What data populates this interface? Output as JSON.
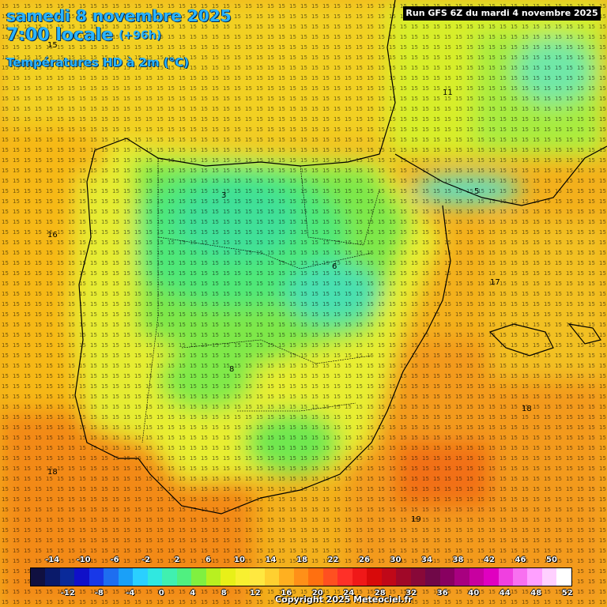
{
  "header": {
    "date_title": "samedi 8 novembre 2025",
    "time_title": "7:00 locale",
    "lead_time": "(+96h)",
    "variable_title": "Températures HD à 2m (°C)",
    "run_info": "Run GFS 6Z du mardi 4 novembre 2025"
  },
  "footer": {
    "copyright": "Copyright 2025 Meteociel.fr"
  },
  "map": {
    "region": "Iberian Peninsula",
    "temperature_regions": [
      {
        "name": "atlantic-north",
        "value": 15
      },
      {
        "name": "france-southwest",
        "value": 11
      },
      {
        "name": "pyrenees",
        "value": 5
      },
      {
        "name": "meseta-north",
        "value": 3
      },
      {
        "name": "meseta-south",
        "value": 8
      },
      {
        "name": "iberian-system",
        "value": 6
      },
      {
        "name": "portugal-coast",
        "value": 16
      },
      {
        "name": "mediterranean-east",
        "value": 17
      },
      {
        "name": "balearic-sea",
        "value": 18
      },
      {
        "name": "alboran-sea",
        "value": 19
      },
      {
        "name": "atlantic-south",
        "value": 18
      }
    ]
  },
  "legend": {
    "top_labels": [
      "-14",
      "-10",
      "-6",
      "-2",
      "2",
      "6",
      "10",
      "14",
      "18",
      "22",
      "26",
      "30",
      "34",
      "38",
      "42",
      "46",
      "50"
    ],
    "bottom_labels": [
      "-12",
      "-8",
      "-4",
      "0",
      "4",
      "8",
      "12",
      "16",
      "20",
      "24",
      "28",
      "32",
      "36",
      "40",
      "44",
      "48",
      "52"
    ],
    "colors": [
      "#101040",
      "#0a1a6a",
      "#0a2a9a",
      "#1010c8",
      "#1838e8",
      "#1e6ef0",
      "#1aa0f8",
      "#2ad0ff",
      "#30e8e0",
      "#40f0b0",
      "#50f080",
      "#80f040",
      "#b8f020",
      "#e8f018",
      "#f8f030",
      "#ffe840",
      "#ffd030",
      "#ffb020",
      "#ff9018",
      "#ff7010",
      "#ff5020",
      "#ff3028",
      "#f01818",
      "#d80a0a",
      "#c00818",
      "#a00828",
      "#880838",
      "#700848",
      "#880060",
      "#a80080",
      "#c800a0",
      "#e000c0",
      "#f040e0",
      "#f870f0",
      "#ffa0ff",
      "#ffd0ff",
      "#ffffff"
    ]
  }
}
